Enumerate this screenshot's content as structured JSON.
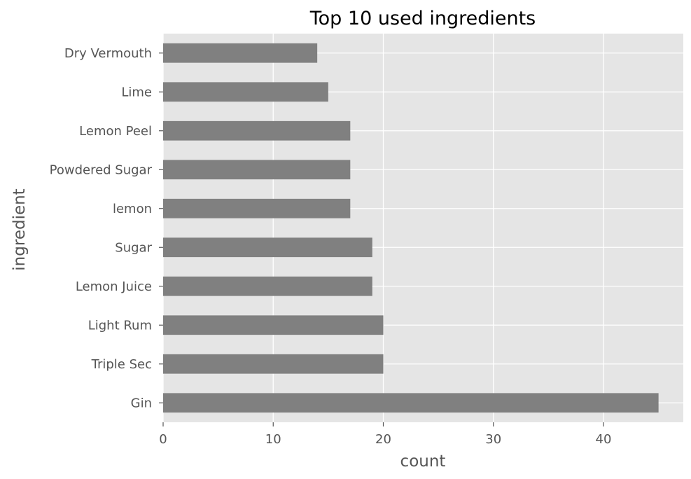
{
  "chart_data": {
    "type": "bar",
    "orientation": "horizontal",
    "title": "Top 10 used ingredients",
    "xlabel": "count",
    "ylabel": "ingredient",
    "categories": [
      "Gin",
      "Triple Sec",
      "Light Rum",
      "Lemon Juice",
      "Sugar",
      "lemon",
      "Powdered Sugar",
      "Lemon Peel",
      "Lime",
      "Dry Vermouth"
    ],
    "values": [
      45,
      20,
      20,
      19,
      19,
      17,
      17,
      17,
      15,
      14
    ],
    "xlim": [
      0,
      47.25
    ],
    "xticks": [
      0,
      10,
      20,
      30,
      40
    ],
    "grid": true,
    "legend": "none",
    "bar_color": "#808080",
    "background_color": "#e5e5e5",
    "grid_color": "#ffffff"
  }
}
